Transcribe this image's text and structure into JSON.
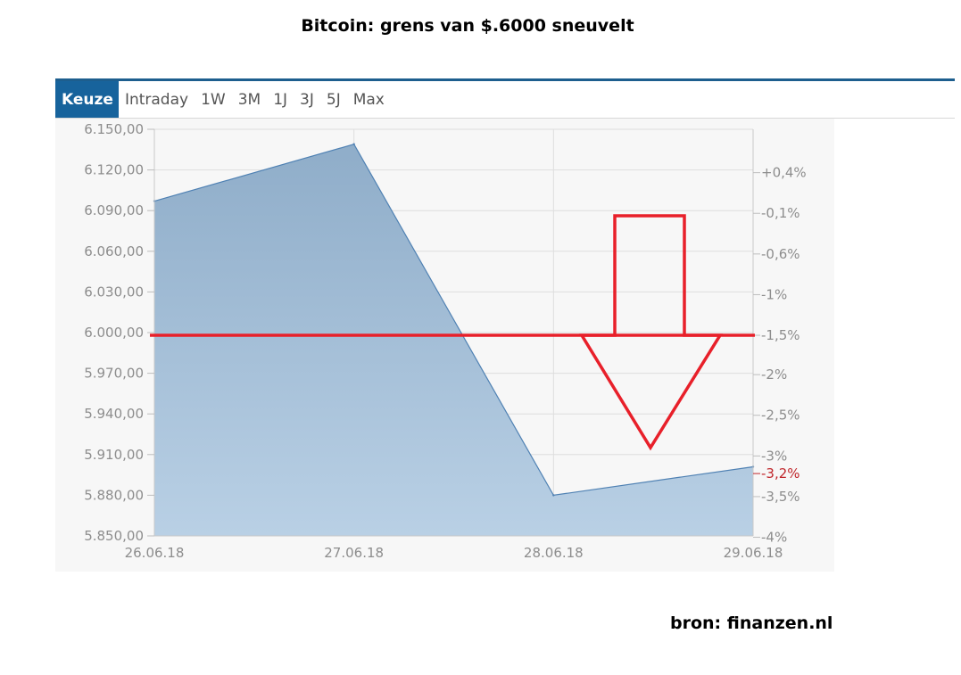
{
  "title": "Bitcoin: grens van $.6000 sneuvelt",
  "source": "bron: finanzen.nl",
  "tabs": [
    {
      "label": "Keuze",
      "active": true
    },
    {
      "label": "Intraday"
    },
    {
      "label": "1W"
    },
    {
      "label": "3M"
    },
    {
      "label": "1J"
    },
    {
      "label": "3J"
    },
    {
      "label": "5J"
    },
    {
      "label": "Max"
    }
  ],
  "colors": {
    "accent": "#17639c",
    "area_top": "#8fadc9",
    "area_bottom": "#b9d0e5",
    "line": "#4f81b3",
    "annotation": "#e8202a",
    "last_pct": "#c0262b"
  },
  "chart_data": {
    "type": "area",
    "x": [
      "26.06.18",
      "27.06.18",
      "28.06.18",
      "29.06.18"
    ],
    "values": [
      6097,
      6139,
      5880,
      5901
    ],
    "ylim": [
      5850,
      6150
    ],
    "y_ticks": [
      {
        "value": 5850,
        "label": "5.850,00"
      },
      {
        "value": 5880,
        "label": "5.880,00"
      },
      {
        "value": 5910,
        "label": "5.910,00"
      },
      {
        "value": 5940,
        "label": "5.940,00"
      },
      {
        "value": 5970,
        "label": "5.970,00"
      },
      {
        "value": 6000,
        "label": "6.000,00"
      },
      {
        "value": 6030,
        "label": "6.030,00"
      },
      {
        "value": 6060,
        "label": "6.060,00"
      },
      {
        "value": 6090,
        "label": "6.090,00"
      },
      {
        "value": 6120,
        "label": "6.120,00"
      },
      {
        "value": 6150,
        "label": "6.150,00"
      }
    ],
    "right_axis": [
      {
        "value": 6118,
        "label": "+0,4%"
      },
      {
        "value": 6088,
        "label": "-0,1%"
      },
      {
        "value": 6058,
        "label": "-0,6%"
      },
      {
        "value": 6028,
        "label": "-1%"
      },
      {
        "value": 5998,
        "label": "-1,5%"
      },
      {
        "value": 5969,
        "label": "-2%"
      },
      {
        "value": 5939,
        "label": "-2,5%"
      },
      {
        "value": 5909,
        "label": "-3%"
      },
      {
        "value": 5879,
        "label": "-3,5%"
      },
      {
        "value": 5849,
        "label": "-4%"
      }
    ],
    "last_value_label": {
      "value": 5896,
      "label": "-3,2%"
    },
    "annotation_line": 5998,
    "grid": true
  }
}
